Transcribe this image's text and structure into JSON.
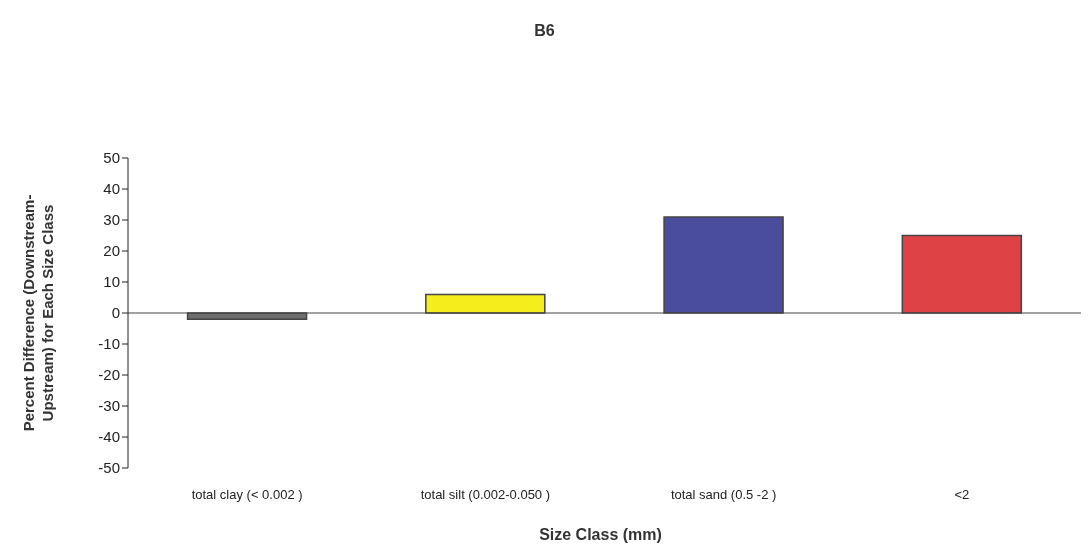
{
  "chart_data": {
    "type": "bar",
    "title": "B6",
    "xlabel": "Size Class (mm)",
    "ylabel": "Percent Difference (Downstream-Upstream) for Each Size Class",
    "categories": [
      "total clay (< 0.002 )",
      "total silt (0.002-0.050 )",
      "total sand (0.5 -2 )",
      "<2"
    ],
    "values": [
      -2,
      6,
      31,
      25
    ],
    "colors": [
      "#6e6e6e",
      "#f5ee1c",
      "#4a4c9c",
      "#df4244"
    ],
    "ylim": [
      -50,
      50
    ],
    "yticks": [
      -50,
      -40,
      -30,
      -20,
      -10,
      0,
      10,
      20,
      30,
      40,
      50
    ],
    "legend": false
  }
}
